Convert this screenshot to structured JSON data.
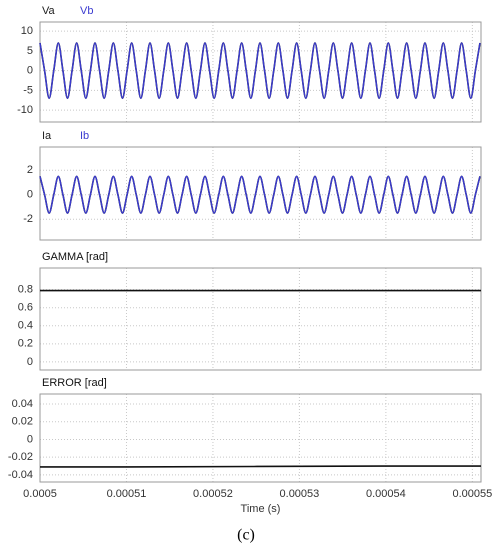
{
  "caption": "(c)",
  "chart_data": [
    {
      "type": "line",
      "x": [
        0.0005,
        0.00050053,
        0.00050106,
        0.00050159,
        0.00050212,
        0.00050265,
        0.00050318,
        0.00050371,
        0.00050424,
        0.00050477,
        0.0005053,
        0.00050583,
        0.00050636,
        0.00050689,
        0.00050742,
        0.00050795,
        0.00050848,
        0.00050901,
        0.00050954,
        0.00051007,
        0.0005106,
        0.00051113,
        0.00051166,
        0.00051219,
        0.00051272,
        0.00051325,
        0.00051378,
        0.00051431,
        0.00051484,
        0.00051537,
        0.0005159,
        0.00051643,
        0.00051696,
        0.00051749,
        0.00051802,
        0.00051855,
        0.00051908,
        0.00051961,
        0.00052014,
        0.00052067,
        0.0005212,
        0.00052173,
        0.00052226,
        0.00052279,
        0.00052332,
        0.00052385,
        0.00052438,
        0.00052491,
        0.00052544,
        0.00052597,
        0.0005265,
        0.00052703,
        0.00052756,
        0.00052809,
        0.00052862,
        0.00052915,
        0.00052968,
        0.00053021,
        0.00053074,
        0.00053127,
        0.0005318,
        0.00053233,
        0.00053286,
        0.00053339,
        0.00053392,
        0.00053445,
        0.00053498,
        0.00053551,
        0.00053604,
        0.00053657,
        0.0005371,
        0.00053763,
        0.00053816,
        0.00053869,
        0.00053922,
        0.00053975,
        0.00054028,
        0.00054081,
        0.00054134,
        0.00054187,
        0.0005424,
        0.00054293,
        0.00054346,
        0.00054399,
        0.00054452,
        0.00054505,
        0.00054558,
        0.00054611,
        0.00054664,
        0.00054717,
        0.0005477,
        0.00054823,
        0.00054876,
        0.00054929,
        0.00054982,
        0.00055035,
        0.00055088
      ],
      "series": [
        {
          "name": "Va",
          "color": "#222222",
          "values": [
            7,
            0,
            -7,
            0,
            7,
            0,
            -7,
            0,
            7,
            0,
            -7,
            0,
            7,
            0,
            -7,
            0,
            7,
            0,
            -7,
            0,
            7,
            0,
            -7,
            0,
            7,
            0,
            -7,
            0,
            7,
            0,
            -7,
            0,
            7,
            0,
            -7,
            0,
            7,
            0,
            -7,
            0,
            7,
            0,
            -7,
            0,
            7,
            0,
            -7,
            0,
            7,
            0,
            -7,
            0,
            7,
            0,
            -7,
            0,
            7,
            0,
            -7,
            0,
            7,
            0,
            -7,
            0,
            7,
            0,
            -7,
            0,
            7,
            0,
            -7,
            0,
            7,
            0,
            -7,
            0,
            7,
            0,
            -7,
            0,
            7,
            0,
            -7,
            0,
            7,
            0,
            -7,
            0,
            7,
            0,
            -7,
            0,
            7,
            0,
            -7,
            0,
            7
          ]
        },
        {
          "name": "Vb",
          "color": "#3b3bd0",
          "values": [
            7,
            0,
            -7,
            0,
            7,
            0,
            -7,
            0,
            7,
            0,
            -7,
            0,
            7,
            0,
            -7,
            0,
            7,
            0,
            -7,
            0,
            7,
            0,
            -7,
            0,
            7,
            0,
            -7,
            0,
            7,
            0,
            -7,
            0,
            7,
            0,
            -7,
            0,
            7,
            0,
            -7,
            0,
            7,
            0,
            -7,
            0,
            7,
            0,
            -7,
            0,
            7,
            0,
            -7,
            0,
            7,
            0,
            -7,
            0,
            7,
            0,
            -7,
            0,
            7,
            0,
            -7,
            0,
            7,
            0,
            -7,
            0,
            7,
            0,
            -7,
            0,
            7,
            0,
            -7,
            0,
            7,
            0,
            -7,
            0,
            7,
            0,
            -7,
            0,
            7,
            0,
            -7,
            0,
            7,
            0,
            -7,
            0,
            7,
            0,
            -7,
            0,
            7
          ]
        }
      ],
      "xlim": [
        0.0005,
        0.000551
      ],
      "xticks": [
        0.0005,
        0.00051,
        0.00052,
        0.00053,
        0.00054,
        0.00055
      ],
      "ylim": [
        -13,
        12.3
      ],
      "yticks": [
        10,
        5,
        0,
        -5,
        -10
      ],
      "grid": true
    },
    {
      "type": "line",
      "x": [
        0.0005,
        0.00050053,
        0.00050106,
        0.00050159,
        0.00050212,
        0.00050265,
        0.00050318,
        0.00050371,
        0.00050424,
        0.00050477,
        0.0005053,
        0.00050583,
        0.00050636,
        0.00050689,
        0.00050742,
        0.00050795,
        0.00050848,
        0.00050901,
        0.00050954,
        0.00051007,
        0.0005106,
        0.00051113,
        0.00051166,
        0.00051219,
        0.00051272,
        0.00051325,
        0.00051378,
        0.00051431,
        0.00051484,
        0.00051537,
        0.0005159,
        0.00051643,
        0.00051696,
        0.00051749,
        0.00051802,
        0.00051855,
        0.00051908,
        0.00051961,
        0.00052014,
        0.00052067,
        0.0005212,
        0.00052173,
        0.00052226,
        0.00052279,
        0.00052332,
        0.00052385,
        0.00052438,
        0.00052491,
        0.00052544,
        0.00052597,
        0.0005265,
        0.00052703,
        0.00052756,
        0.00052809,
        0.00052862,
        0.00052915,
        0.00052968,
        0.00053021,
        0.00053074,
        0.00053127,
        0.0005318,
        0.00053233,
        0.00053286,
        0.00053339,
        0.00053392,
        0.00053445,
        0.00053498,
        0.00053551,
        0.00053604,
        0.00053657,
        0.0005371,
        0.00053763,
        0.00053816,
        0.00053869,
        0.00053922,
        0.00053975,
        0.00054028,
        0.00054081,
        0.00054134,
        0.00054187,
        0.0005424,
        0.00054293,
        0.00054346,
        0.00054399,
        0.00054452,
        0.00054505,
        0.00054558,
        0.00054611,
        0.00054664,
        0.00054717,
        0.0005477,
        0.00054823,
        0.00054876,
        0.00054929,
        0.00054982,
        0.00055035,
        0.00055088
      ],
      "series": [
        {
          "name": "Ia",
          "color": "#222222",
          "values": [
            1.5,
            0,
            -1.5,
            0,
            1.5,
            0,
            -1.5,
            0,
            1.5,
            0,
            -1.5,
            0,
            1.5,
            0,
            -1.5,
            0,
            1.5,
            0,
            -1.5,
            0,
            1.5,
            0,
            -1.5,
            0,
            1.5,
            0,
            -1.5,
            0,
            1.5,
            0,
            -1.5,
            0,
            1.5,
            0,
            -1.5,
            0,
            1.5,
            0,
            -1.5,
            0,
            1.5,
            0,
            -1.5,
            0,
            1.5,
            0,
            -1.5,
            0,
            1.5,
            0,
            -1.5,
            0,
            1.5,
            0,
            -1.5,
            0,
            1.5,
            0,
            -1.5,
            0,
            1.5,
            0,
            -1.5,
            0,
            1.5,
            0,
            -1.5,
            0,
            1.5,
            0,
            -1.5,
            0,
            1.5,
            0,
            -1.5,
            0,
            1.5,
            0,
            -1.5,
            0,
            1.5,
            0,
            -1.5,
            0,
            1.5,
            0,
            -1.5,
            0,
            1.5,
            0,
            -1.5,
            0,
            1.5,
            0,
            -1.5,
            0,
            1.5
          ]
        },
        {
          "name": "Ib",
          "color": "#3b3bd0",
          "values": [
            1.5,
            0,
            -1.5,
            0,
            1.5,
            0,
            -1.5,
            0,
            1.5,
            0,
            -1.5,
            0,
            1.5,
            0,
            -1.5,
            0,
            1.5,
            0,
            -1.5,
            0,
            1.5,
            0,
            -1.5,
            0,
            1.5,
            0,
            -1.5,
            0,
            1.5,
            0,
            -1.5,
            0,
            1.5,
            0,
            -1.5,
            0,
            1.5,
            0,
            -1.5,
            0,
            1.5,
            0,
            -1.5,
            0,
            1.5,
            0,
            -1.5,
            0,
            1.5,
            0,
            -1.5,
            0,
            1.5,
            0,
            -1.5,
            0,
            1.5,
            0,
            -1.5,
            0,
            1.5,
            0,
            -1.5,
            0,
            1.5,
            0,
            -1.5,
            0,
            1.5,
            0,
            -1.5,
            0,
            1.5,
            0,
            -1.5,
            0,
            1.5,
            0,
            -1.5,
            0,
            1.5,
            0,
            -1.5,
            0,
            1.5,
            0,
            -1.5,
            0,
            1.5,
            0,
            -1.5,
            0,
            1.5,
            0,
            -1.5,
            0,
            1.5
          ]
        }
      ],
      "xlim": [
        0.0005,
        0.000551
      ],
      "xticks": [
        0.0005,
        0.00051,
        0.00052,
        0.00053,
        0.00054,
        0.00055
      ],
      "ylim": [
        -3.7,
        3.9
      ],
      "yticks": [
        2,
        0,
        -2
      ],
      "grid": true
    },
    {
      "type": "line",
      "x": [
        0.0005,
        0.000551
      ],
      "series": [
        {
          "name": "GAMMA [rad]",
          "color": "#111111",
          "values": [
            0.79,
            0.79
          ]
        }
      ],
      "xlim": [
        0.0005,
        0.000551
      ],
      "xticks": [
        0.0005,
        0.00051,
        0.00052,
        0.00053,
        0.00054,
        0.00055
      ],
      "ylim": [
        -0.09,
        1.04
      ],
      "yticks": [
        0.8,
        0.6,
        0.4,
        0.2,
        0
      ],
      "grid": true
    },
    {
      "type": "line",
      "x": [
        0.0005,
        0.00051,
        0.00054,
        0.000551
      ],
      "series": [
        {
          "name": "ERROR [rad]",
          "color": "#111111",
          "values": [
            -0.031,
            -0.031,
            -0.03,
            -0.03
          ]
        }
      ],
      "xlim": [
        0.0005,
        0.000551
      ],
      "xticks": [
        0.0005,
        0.00051,
        0.00052,
        0.00053,
        0.00054,
        0.00055
      ],
      "xlabel": "Time (s)",
      "ylim": [
        -0.048,
        0.0513
      ],
      "yticks": [
        0.04,
        0.02,
        0,
        -0.02,
        -0.04
      ],
      "grid": true
    }
  ]
}
